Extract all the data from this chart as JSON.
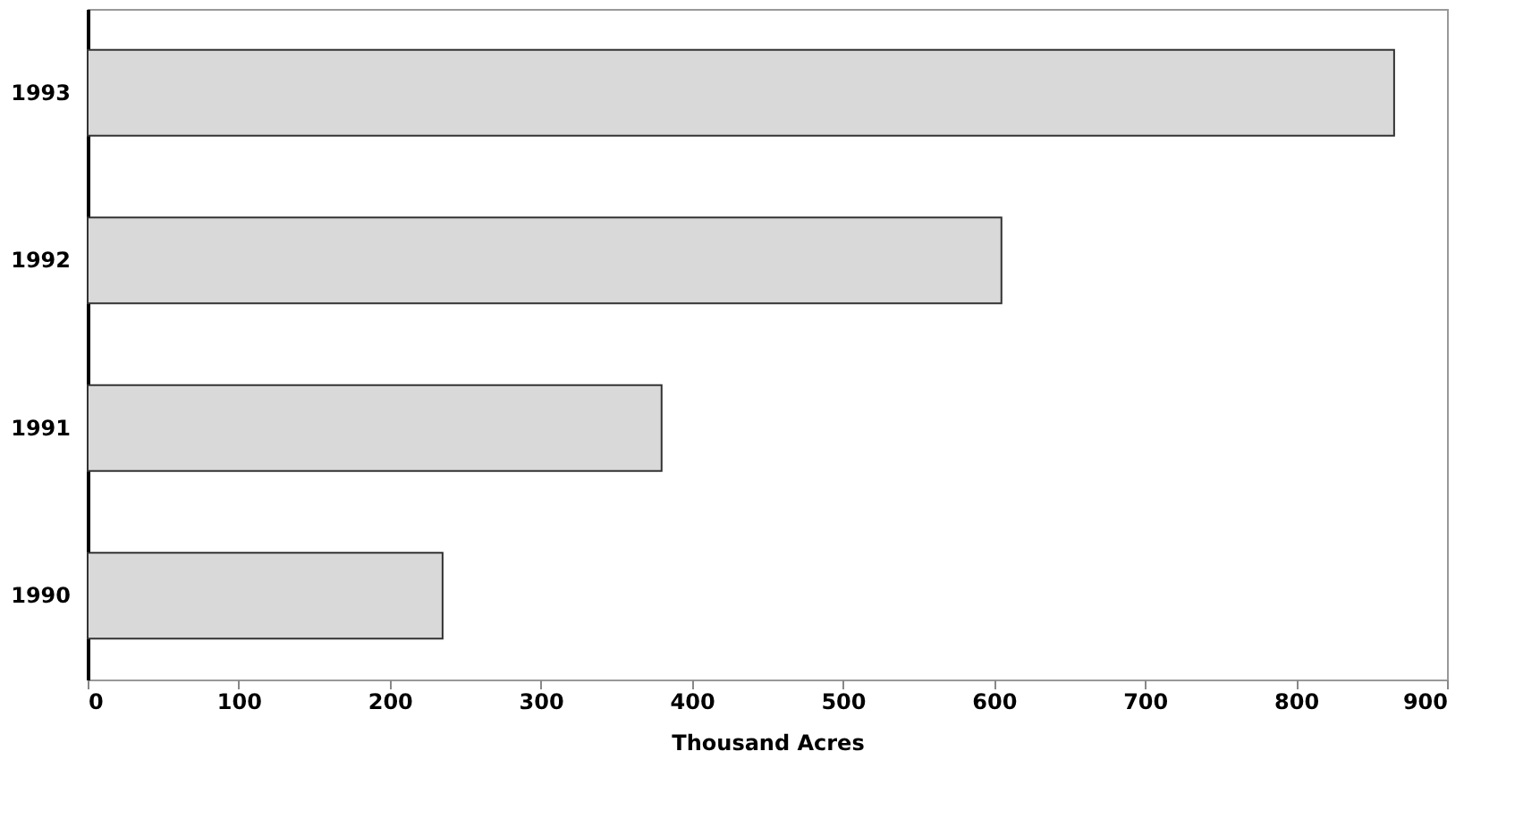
{
  "chart_data": {
    "type": "bar",
    "orientation": "horizontal",
    "xlabel": "Thousand Acres",
    "categories": [
      "1993",
      "1992",
      "1991",
      "1990"
    ],
    "values": [
      865,
      605,
      380,
      235
    ],
    "color": "#d9d9d9",
    "xlim": [
      0,
      900
    ],
    "xticks": [
      0,
      100,
      200,
      300,
      400,
      500,
      600,
      700,
      800,
      900
    ],
    "grid": false
  }
}
